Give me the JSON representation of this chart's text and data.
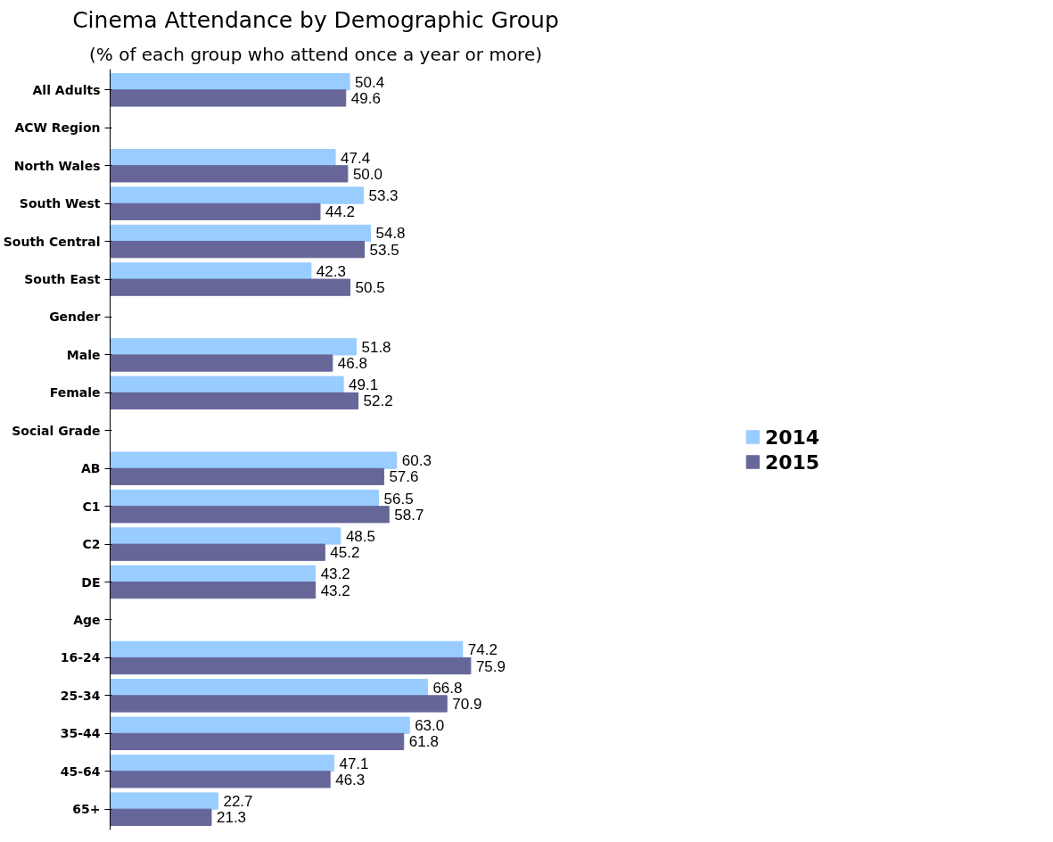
{
  "chart_data": {
    "type": "bar",
    "orientation": "horizontal",
    "title": "Cinema Attendance by Demographic Group",
    "subtitle": "(% of each group who attend once a year or more)",
    "categories": [
      "All Adults",
      "ACW Region",
      "North Wales",
      "South West",
      "South Central",
      "South East",
      "Gender",
      "Male",
      "Female",
      "Social Grade",
      "AB",
      "C1",
      "C2",
      "DE",
      "Age",
      "16-24",
      "25-34",
      "35-44",
      "45-64",
      "65+"
    ],
    "series": [
      {
        "name": "2014",
        "color": "#99ccff",
        "values": [
          50.4,
          null,
          47.4,
          53.3,
          54.8,
          42.3,
          null,
          51.8,
          49.1,
          null,
          60.3,
          56.5,
          48.5,
          43.2,
          null,
          74.2,
          66.8,
          63.0,
          47.1,
          22.7
        ],
        "value_labels": [
          "50.4",
          null,
          "47.4",
          "53.3",
          "54.8",
          "42.3",
          null,
          "51.8",
          "49.1",
          null,
          "60.3",
          "56.5",
          "48.5",
          "43.2",
          null,
          "74.2",
          "66.8",
          "63.0",
          "47.1",
          "22.7"
        ]
      },
      {
        "name": "2015",
        "color": "#666699",
        "values": [
          49.6,
          null,
          50.0,
          44.2,
          53.5,
          50.5,
          null,
          46.8,
          52.2,
          null,
          57.6,
          58.7,
          45.2,
          43.2,
          null,
          75.9,
          70.9,
          61.8,
          46.3,
          21.3
        ],
        "value_labels": [
          "49.6",
          null,
          "50.0",
          "44.2",
          "53.5",
          "50.5",
          null,
          "46.8",
          "52.2",
          null,
          "57.6",
          "58.7",
          "45.2",
          "43.2",
          null,
          "75.9",
          "70.9",
          "61.8",
          "46.3",
          "21.3"
        ]
      }
    ],
    "grid": false,
    "legend": "right"
  }
}
